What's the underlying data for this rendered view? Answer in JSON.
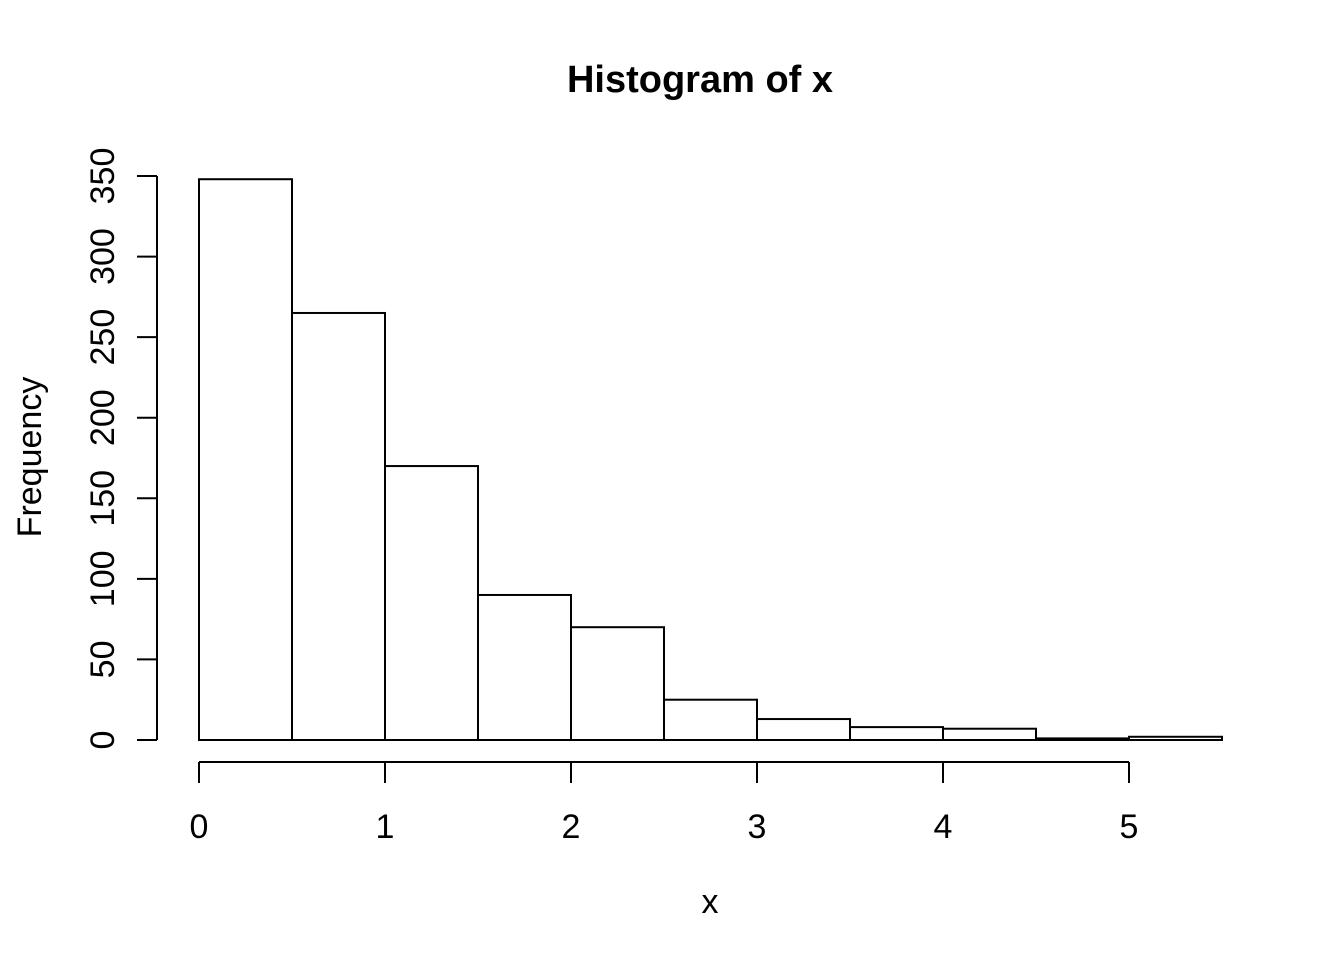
{
  "figure": {
    "background": "#ffffff",
    "text_color": "#000000"
  },
  "chart_data": {
    "type": "bar",
    "chart_kind": "histogram",
    "title": "Histogram of x",
    "xlabel": "x",
    "ylabel": "Frequency",
    "bin_edges": [
      0,
      0.5,
      1,
      1.5,
      2,
      2.5,
      3,
      3.5,
      4,
      4.5,
      5,
      5.5
    ],
    "counts": [
      348,
      265,
      170,
      90,
      70,
      25,
      13,
      8,
      7,
      1,
      2
    ],
    "x_ticks": [
      0,
      1,
      2,
      3,
      4,
      5
    ],
    "y_ticks": [
      0,
      50,
      100,
      150,
      200,
      250,
      300,
      350
    ],
    "xlim": [
      0,
      5.5
    ],
    "ylim": [
      0,
      350
    ],
    "grid": false,
    "legend_position": null,
    "bar_fill": "#ffffff",
    "bar_stroke": "#000000",
    "axis_color": "#000000",
    "background": "#ffffff"
  }
}
